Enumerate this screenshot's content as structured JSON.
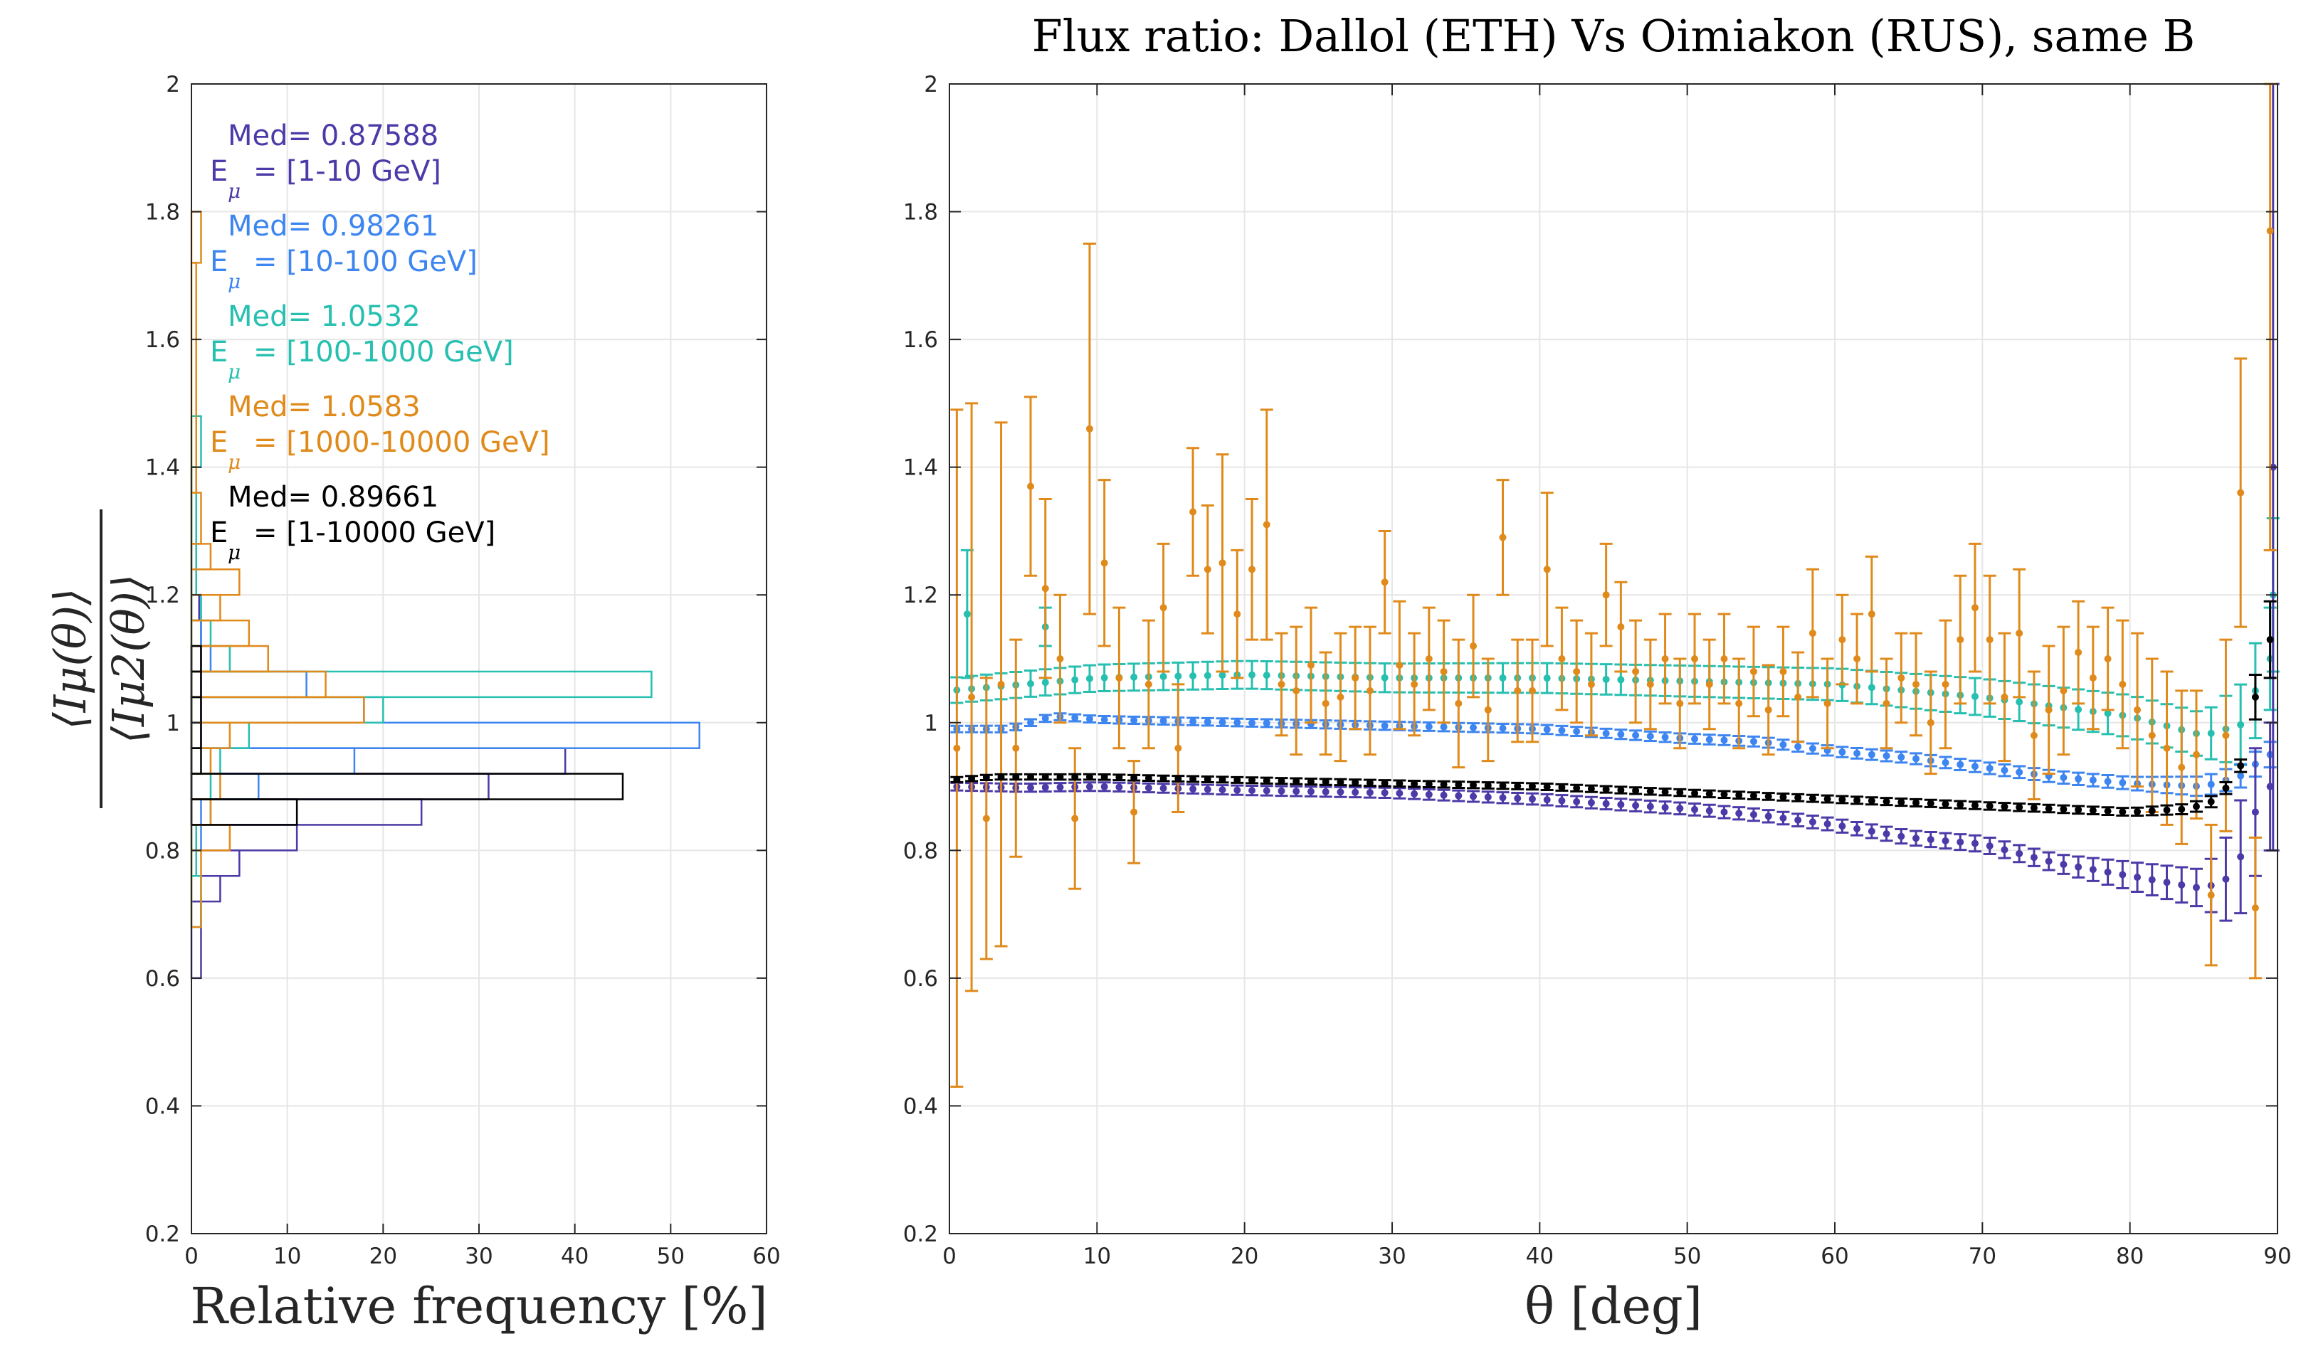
{
  "chart_data": [
    {
      "type": "histogram",
      "orientation": "horizontal",
      "title": "",
      "xlabel": "Relative frequency [%]",
      "ylabel_num": "⟨Iμ(θ)⟩",
      "ylabel_den": "⟨Iμ2(θ)⟩",
      "xlim": [
        0,
        60
      ],
      "ylim": [
        0.2,
        2
      ],
      "xticks": [
        "0",
        "10",
        "20",
        "30",
        "40",
        "50",
        "60"
      ],
      "yticks": [
        "0.2",
        "0.4",
        "0.6",
        "0.8",
        "1",
        "1.2",
        "1.4",
        "1.6",
        "1.8",
        "2"
      ],
      "legend": [
        {
          "med": "Med= 0.87588",
          "range": "= [1-10 GeV]",
          "color": "#4b3aa7"
        },
        {
          "med": "Med= 0.98261",
          "range": "= [10-100 GeV]",
          "color": "#3d85f0"
        },
        {
          "med": "Med= 1.0532",
          "range": "= [100-1000 GeV]",
          "color": "#26bfb0"
        },
        {
          "med": "Med= 1.0583",
          "range": "= [1000-10000 GeV]",
          "color": "#e08a1b"
        },
        {
          "med": "Med= 0.89661",
          "range": "= [1-10000 GeV]",
          "color": "#000000"
        }
      ],
      "legend_sym": "E",
      "legend_sub": "μ",
      "series": [
        {
          "name": "[1-10 GeV]",
          "color": "#4b3aa7",
          "edges": [
            0.6,
            0.72,
            0.76,
            0.8,
            0.84,
            0.88,
            0.92,
            0.96,
            1.0,
            1.04,
            1.08,
            1.12,
            1.16,
            1.2,
            1.4
          ],
          "values": [
            1,
            3,
            5,
            11,
            24,
            31,
            39,
            1,
            1,
            1,
            1,
            1,
            0.8,
            0.5
          ]
        },
        {
          "name": "[10-100 GeV]",
          "color": "#3d85f0",
          "edges": [
            0.8,
            0.88,
            0.92,
            0.96,
            1.0,
            1.04,
            1.08,
            1.12,
            1.2,
            1.4
          ],
          "values": [
            1,
            7,
            17,
            53,
            18,
            12,
            2,
            1,
            0.5
          ]
        },
        {
          "name": "[100-1000 GeV]",
          "color": "#26bfb0",
          "edges": [
            0.68,
            0.76,
            0.84,
            0.92,
            0.96,
            1.0,
            1.04,
            1.08,
            1.12,
            1.16,
            1.2,
            1.4,
            1.48
          ],
          "values": [
            1,
            0.5,
            2,
            3,
            6,
            20,
            48,
            4,
            2,
            1,
            0.5,
            1
          ]
        },
        {
          "name": "[1000-10000 GeV]",
          "color": "#e08a1b",
          "edges": [
            0.68,
            0.8,
            0.84,
            0.88,
            0.92,
            0.96,
            1.0,
            1.04,
            1.08,
            1.12,
            1.16,
            1.2,
            1.24,
            1.28,
            1.36,
            1.72,
            1.8
          ],
          "values": [
            1,
            4,
            2,
            3,
            2,
            4,
            18,
            14,
            8,
            6,
            3,
            5,
            2,
            1,
            0.5,
            1
          ]
        },
        {
          "name": "[1-10000 GeV]",
          "color": "#000000",
          "edges": [
            0.84,
            0.88,
            0.92,
            0.96,
            1.0,
            1.04,
            1.08,
            1.12
          ],
          "values": [
            11,
            45,
            1,
            1,
            1,
            1,
            1
          ]
        }
      ]
    },
    {
      "type": "scatter",
      "title": "Flux ratio: Dallol (ETH) Vs Oimiakon (RUS), same B",
      "xlabel": "θ [deg]",
      "xlim": [
        0,
        90
      ],
      "ylim": [
        0.2,
        2
      ],
      "xticks": [
        "0",
        "10",
        "20",
        "30",
        "40",
        "50",
        "60",
        "70",
        "80",
        "90"
      ],
      "yticks": [
        "0.2",
        "0.4",
        "0.6",
        "0.8",
        "1",
        "1.2",
        "1.4",
        "1.6",
        "1.8",
        "2"
      ],
      "series": [
        {
          "name": "[1-10 GeV]",
          "color": "#4b3aa7",
          "curve": [
            [
              0,
              0.9
            ],
            [
              5,
              0.898
            ],
            [
              10,
              0.9
            ],
            [
              20,
              0.894
            ],
            [
              30,
              0.89
            ],
            [
              40,
              0.88
            ],
            [
              50,
              0.865
            ],
            [
              55,
              0.855
            ],
            [
              60,
              0.84
            ],
            [
              65,
              0.82
            ],
            [
              70,
              0.81
            ],
            [
              75,
              0.78
            ],
            [
              80,
              0.76
            ],
            [
              85,
              0.74
            ],
            [
              87,
              0.76
            ],
            [
              88,
              0.82
            ],
            [
              89,
              0.9
            ]
          ],
          "err": [
            [
              0,
              0.006
            ],
            [
              60,
              0.01
            ],
            [
              75,
              0.014
            ],
            [
              85,
              0.03
            ],
            [
              88,
              0.1
            ],
            [
              89,
              0.1
            ]
          ],
          "spikes": [
            [
              89.7,
              1.4,
              0.6
            ]
          ]
        },
        {
          "name": "[10-100 GeV]",
          "color": "#3d85f0",
          "curve": [
            [
              0,
              0.99
            ],
            [
              4,
              0.99
            ],
            [
              7,
              1.01
            ],
            [
              10,
              1.005
            ],
            [
              20,
              1.0
            ],
            [
              30,
              0.995
            ],
            [
              40,
              0.99
            ],
            [
              50,
              0.975
            ],
            [
              55,
              0.97
            ],
            [
              60,
              0.955
            ],
            [
              65,
              0.945
            ],
            [
              70,
              0.93
            ],
            [
              75,
              0.915
            ],
            [
              80,
              0.905
            ],
            [
              85,
              0.9
            ],
            [
              88,
              0.92
            ],
            [
              89,
              0.95
            ]
          ],
          "err": [
            [
              0,
              0.005
            ],
            [
              60,
              0.008
            ],
            [
              80,
              0.01
            ],
            [
              89,
              0.02
            ]
          ],
          "spikes": []
        },
        {
          "name": "[100-1000 GeV]",
          "color": "#26bfb0",
          "curve": [
            [
              0,
              1.05
            ],
            [
              10,
              1.07
            ],
            [
              20,
              1.075
            ],
            [
              30,
              1.07
            ],
            [
              40,
              1.07
            ],
            [
              50,
              1.065
            ],
            [
              60,
              1.06
            ],
            [
              70,
              1.04
            ],
            [
              80,
              1.01
            ],
            [
              85,
              0.98
            ],
            [
              88,
              1.0
            ],
            [
              89,
              1.1
            ]
          ],
          "err": [
            [
              0,
              0.02
            ],
            [
              60,
              0.025
            ],
            [
              85,
              0.035
            ],
            [
              89,
              0.08
            ]
          ],
          "spikes": [
            [
              1.2,
              1.17,
              0.1
            ],
            [
              6.5,
              1.15,
              0.03
            ],
            [
              89.7,
              1.2,
              0.12
            ]
          ]
        },
        {
          "name": "[1000-10000 GeV]",
          "color": "#e08a1b",
          "points": [
            [
              0.5,
              0.96,
              0.53
            ],
            [
              1.5,
              1.04,
              0.46
            ],
            [
              2.5,
              0.85,
              0.22
            ],
            [
              3.5,
              1.06,
              0.41
            ],
            [
              4.5,
              0.96,
              0.17
            ],
            [
              5.5,
              1.37,
              0.14
            ],
            [
              6.5,
              1.21,
              0.14
            ],
            [
              7.5,
              1.1,
              0.1
            ],
            [
              8.5,
              0.85,
              0.11
            ],
            [
              9.5,
              1.46,
              0.29
            ],
            [
              10.5,
              1.25,
              0.13
            ],
            [
              11.5,
              1.07,
              0.11
            ],
            [
              12.5,
              0.86,
              0.08
            ],
            [
              13.5,
              1.06,
              0.1
            ],
            [
              14.5,
              1.18,
              0.1
            ],
            [
              15.5,
              0.96,
              0.1
            ],
            [
              16.5,
              1.33,
              0.1
            ],
            [
              17.5,
              1.24,
              0.1
            ],
            [
              18.5,
              1.25,
              0.17
            ],
            [
              19.5,
              1.17,
              0.1
            ],
            [
              20.5,
              1.24,
              0.11
            ],
            [
              21.5,
              1.31,
              0.18
            ],
            [
              22.5,
              1.06,
              0.08
            ],
            [
              23.5,
              1.05,
              0.1
            ],
            [
              24.5,
              1.09,
              0.09
            ],
            [
              25.5,
              1.03,
              0.08
            ],
            [
              26.5,
              1.04,
              0.1
            ],
            [
              27.5,
              1.07,
              0.08
            ],
            [
              28.5,
              1.05,
              0.1
            ],
            [
              29.5,
              1.22,
              0.08
            ],
            [
              30.5,
              1.09,
              0.1
            ],
            [
              31.5,
              1.06,
              0.08
            ],
            [
              32.5,
              1.1,
              0.08
            ],
            [
              33.5,
              1.08,
              0.08
            ],
            [
              34.5,
              1.03,
              0.1
            ],
            [
              35.5,
              1.12,
              0.08
            ],
            [
              36.5,
              1.02,
              0.08
            ],
            [
              37.5,
              1.29,
              0.09
            ],
            [
              38.5,
              1.05,
              0.08
            ],
            [
              39.5,
              1.05,
              0.08
            ],
            [
              40.5,
              1.24,
              0.12
            ],
            [
              41.5,
              1.1,
              0.08
            ],
            [
              42.5,
              1.08,
              0.08
            ],
            [
              43.5,
              1.06,
              0.08
            ],
            [
              44.5,
              1.2,
              0.08
            ],
            [
              45.5,
              1.15,
              0.07
            ],
            [
              46.5,
              1.08,
              0.08
            ],
            [
              47.5,
              1.06,
              0.07
            ],
            [
              48.5,
              1.1,
              0.07
            ],
            [
              49.5,
              1.03,
              0.07
            ],
            [
              50.5,
              1.1,
              0.07
            ],
            [
              51.5,
              1.06,
              0.07
            ],
            [
              52.5,
              1.1,
              0.07
            ],
            [
              53.5,
              1.03,
              0.07
            ],
            [
              54.5,
              1.08,
              0.07
            ],
            [
              55.5,
              1.02,
              0.07
            ],
            [
              56.5,
              1.08,
              0.07
            ],
            [
              57.5,
              1.04,
              0.07
            ],
            [
              58.5,
              1.14,
              0.1
            ],
            [
              59.5,
              1.03,
              0.07
            ],
            [
              60.5,
              1.13,
              0.07
            ],
            [
              61.5,
              1.1,
              0.07
            ],
            [
              62.5,
              1.17,
              0.09
            ],
            [
              63.5,
              1.03,
              0.07
            ],
            [
              64.5,
              1.07,
              0.07
            ],
            [
              65.5,
              1.06,
              0.08
            ],
            [
              66.5,
              1.0,
              0.08
            ],
            [
              67.5,
              1.06,
              0.1
            ],
            [
              68.5,
              1.13,
              0.1
            ],
            [
              69.5,
              1.18,
              0.1
            ],
            [
              70.5,
              1.13,
              0.1
            ],
            [
              71.5,
              1.04,
              0.1
            ],
            [
              72.5,
              1.14,
              0.1
            ],
            [
              73.5,
              0.98,
              0.1
            ],
            [
              74.5,
              1.02,
              0.1
            ],
            [
              75.5,
              1.05,
              0.1
            ],
            [
              76.5,
              1.11,
              0.08
            ],
            [
              77.5,
              1.07,
              0.08
            ],
            [
              78.5,
              1.1,
              0.08
            ],
            [
              79.5,
              1.06,
              0.1
            ],
            [
              80.5,
              1.02,
              0.12
            ],
            [
              81.5,
              0.98,
              0.12
            ],
            [
              82.5,
              0.96,
              0.12
            ],
            [
              83.5,
              0.93,
              0.12
            ],
            [
              84.5,
              0.95,
              0.1
            ],
            [
              85.5,
              0.73,
              0.11
            ],
            [
              86.5,
              0.98,
              0.15
            ],
            [
              87.5,
              1.36,
              0.21
            ],
            [
              88.5,
              0.71,
              0.11
            ],
            [
              89.5,
              1.77,
              0.5
            ]
          ]
        },
        {
          "name": "[1-10000 GeV]",
          "color": "#000000",
          "curve": [
            [
              0,
              0.91
            ],
            [
              3,
              0.915
            ],
            [
              10,
              0.915
            ],
            [
              20,
              0.91
            ],
            [
              30,
              0.905
            ],
            [
              40,
              0.9
            ],
            [
              50,
              0.89
            ],
            [
              55,
              0.885
            ],
            [
              60,
              0.88
            ],
            [
              65,
              0.875
            ],
            [
              70,
              0.87
            ],
            [
              75,
              0.865
            ],
            [
              80,
              0.86
            ],
            [
              84,
              0.865
            ],
            [
              86,
              0.88
            ],
            [
              88,
              0.95
            ],
            [
              89,
              1.13
            ]
          ],
          "err": [
            [
              0,
              0.004
            ],
            [
              80,
              0.006
            ],
            [
              88,
              0.01
            ],
            [
              89,
              0.06
            ]
          ],
          "spikes": []
        }
      ]
    }
  ]
}
